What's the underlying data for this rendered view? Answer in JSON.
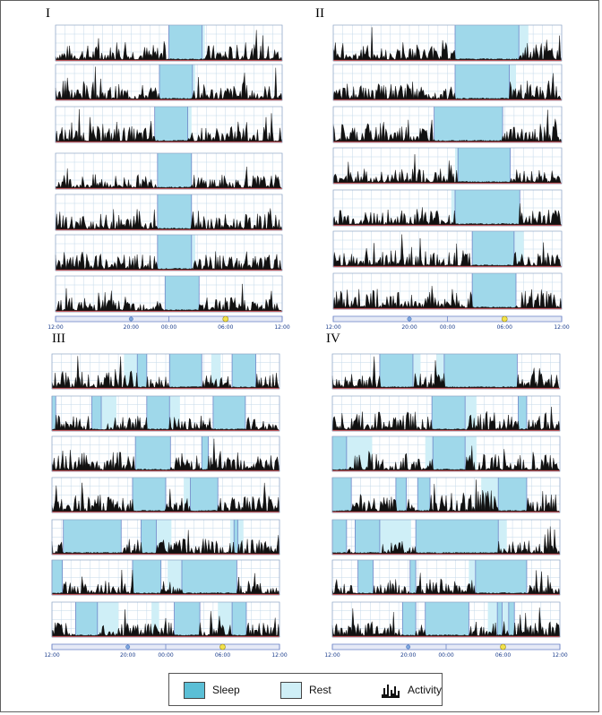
{
  "colors": {
    "sleep": "#9fd8ea",
    "sleep_swatch": "#5bbfd6",
    "rest": "#cfeff7",
    "activity": "#111111",
    "grid": "#c4d9ea",
    "baseline": "#d8322a",
    "frame_edge": "#6f86c8",
    "bar_fill": "#e6eaf6",
    "axis_text": "#1a3c8c"
  },
  "legend": {
    "sleep": "Sleep",
    "rest": "Rest",
    "activity": "Activity"
  },
  "chart_data": [
    {
      "type": "actogram",
      "panel": "I",
      "x_ticks": [
        "12:00",
        "20:00",
        "00:00",
        "06:00",
        "12:00"
      ],
      "rows": [
        {
          "sleep": [
            [
              12.0,
              15.5
            ]
          ],
          "rest": [
            [
              15.5,
              15.8
            ]
          ],
          "level": 0.45
        },
        {
          "sleep": [
            [
              11.0,
              14.5
            ]
          ],
          "rest": [
            [
              14.5,
              14.8
            ]
          ],
          "level": 0.45
        },
        {
          "sleep": [
            [
              10.5,
              14.0
            ]
          ],
          "rest": [
            [
              14.0,
              14.4
            ]
          ],
          "level": 0.45
        },
        {
          "sleep": [
            [
              10.8,
              14.4
            ]
          ],
          "rest": [],
          "level": 0.4
        },
        {
          "sleep": [
            [
              10.8,
              14.4
            ]
          ],
          "rest": [],
          "level": 0.45
        },
        {
          "sleep": [
            [
              10.8,
              14.4
            ]
          ],
          "rest": [
            [
              14.4,
              14.8
            ]
          ],
          "level": 0.45
        },
        {
          "sleep": [
            [
              11.6,
              15.2
            ]
          ],
          "rest": [],
          "level": 0.4
        }
      ]
    },
    {
      "type": "actogram",
      "panel": "II",
      "x_ticks": [
        "12:00",
        "20:00",
        "00:00",
        "06:00",
        "12:00"
      ],
      "rows": [
        {
          "sleep": [
            [
              12.8,
              19.5
            ]
          ],
          "rest": [
            [
              19.5,
              20.5
            ]
          ],
          "level": 0.5
        },
        {
          "sleep": [
            [
              12.8,
              18.5
            ]
          ],
          "rest": [
            [
              18.5,
              19.2
            ]
          ],
          "level": 0.45
        },
        {
          "sleep": [
            [
              10.6,
              17.8
            ]
          ],
          "rest": [],
          "level": 0.5
        },
        {
          "sleep": [
            [
              13.1,
              18.6
            ]
          ],
          "rest": [
            [
              12.8,
              13.1
            ]
          ],
          "level": 0.4
        },
        {
          "sleep": [
            [
              12.8,
              19.6
            ]
          ],
          "rest": [
            [
              12.4,
              12.8
            ]
          ],
          "level": 0.45
        },
        {
          "sleep": [
            [
              14.6,
              19.0
            ]
          ],
          "rest": [
            [
              19.0,
              20.0
            ]
          ],
          "level": 0.45
        },
        {
          "sleep": [
            [
              14.6,
              19.2
            ]
          ],
          "rest": [],
          "level": 0.55
        }
      ]
    },
    {
      "type": "actogram",
      "panel": "III",
      "x_ticks": [
        "12:00",
        "20:00",
        "00:00",
        "06:00",
        "12:00"
      ],
      "rows": [
        {
          "sleep": [
            [
              9.0,
              10.0
            ],
            [
              12.4,
              15.8
            ],
            [
              19.0,
              21.5
            ]
          ],
          "rest": [
            [
              7.6,
              9.0
            ],
            [
              16.8,
              17.8
            ]
          ],
          "level": 0.5
        },
        {
          "sleep": [
            [
              0.0,
              0.4
            ],
            [
              4.2,
              5.2
            ],
            [
              10.0,
              12.4
            ],
            [
              17.0,
              20.4
            ]
          ],
          "rest": [
            [
              5.2,
              6.8
            ],
            [
              12.4,
              13.5
            ]
          ],
          "level": 0.45
        },
        {
          "sleep": [
            [
              8.8,
              12.5
            ],
            [
              15.8,
              16.5
            ]
          ],
          "rest": [],
          "level": 0.45
        },
        {
          "sleep": [
            [
              8.5,
              12.0
            ],
            [
              14.6,
              17.5
            ]
          ],
          "rest": [
            [
              13.9,
              14.6
            ]
          ],
          "level": 0.5
        },
        {
          "sleep": [
            [
              1.2,
              7.3
            ],
            [
              9.4,
              11.0
            ],
            [
              19.2,
              19.6
            ]
          ],
          "rest": [
            [
              11.0,
              12.6
            ],
            [
              18.8,
              19.2
            ],
            [
              19.6,
              20.2
            ]
          ],
          "level": 0.45
        },
        {
          "sleep": [
            [
              0.0,
              1.1
            ],
            [
              8.5,
              11.5
            ],
            [
              13.7,
              19.5
            ]
          ],
          "rest": [
            [
              12.2,
              13.7
            ]
          ],
          "level": 0.4
        },
        {
          "sleep": [
            [
              2.5,
              4.8
            ],
            [
              12.9,
              15.6
            ],
            [
              19.0,
              20.5
            ]
          ],
          "rest": [
            [
              4.8,
              7.0
            ],
            [
              10.5,
              11.3
            ],
            [
              17.5,
              19.0
            ]
          ],
          "level": 0.4
        }
      ]
    },
    {
      "type": "actogram",
      "panel": "IV",
      "x_ticks": [
        "12:00",
        "20:00",
        "00:00",
        "06:00",
        "12:00"
      ],
      "rows": [
        {
          "sleep": [
            [
              5.0,
              8.5
            ],
            [
              11.8,
              19.5
            ]
          ],
          "rest": [
            [
              8.5,
              9.3
            ],
            [
              11.0,
              11.8
            ]
          ],
          "level": 0.45
        },
        {
          "sleep": [
            [
              10.5,
              14.0
            ],
            [
              19.6,
              20.5
            ]
          ],
          "rest": [
            [
              14.0,
              15.2
            ]
          ],
          "level": 0.55
        },
        {
          "sleep": [
            [
              0.0,
              1.5
            ],
            [
              10.6,
              14.0
            ]
          ],
          "rest": [
            [
              1.5,
              4.2
            ],
            [
              9.8,
              10.6
            ],
            [
              14.0,
              15.2
            ]
          ],
          "level": 0.5
        },
        {
          "sleep": [
            [
              0.0,
              2.0
            ],
            [
              6.7,
              7.8
            ],
            [
              9.0,
              10.3
            ],
            [
              17.5,
              20.5
            ]
          ],
          "rest": [
            [
              15.7,
              17.5
            ]
          ],
          "level": 0.65
        },
        {
          "sleep": [
            [
              0.0,
              1.5
            ],
            [
              2.4,
              5.0
            ],
            [
              8.8,
              17.5
            ]
          ],
          "rest": [
            [
              5.0,
              8.3
            ],
            [
              17.5,
              18.4
            ]
          ],
          "level": 0.4
        },
        {
          "sleep": [
            [
              2.7,
              4.3
            ],
            [
              8.2,
              8.8
            ],
            [
              15.1,
              20.5
            ]
          ],
          "rest": [
            [
              14.4,
              15.1
            ]
          ],
          "level": 0.45
        },
        {
          "sleep": [
            [
              7.4,
              8.8
            ],
            [
              9.8,
              14.4
            ],
            [
              17.4,
              17.9
            ],
            [
              18.6,
              19.2
            ]
          ],
          "rest": [
            [
              16.4,
              17.4
            ],
            [
              17.9,
              18.6
            ]
          ],
          "level": 0.45
        }
      ]
    }
  ]
}
